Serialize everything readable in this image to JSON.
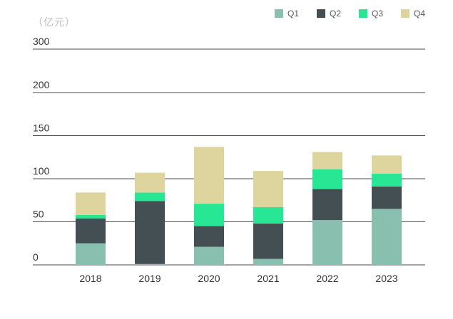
{
  "chart_data": {
    "type": "bar",
    "stacked": true,
    "unit_label": "（亿元）",
    "categories": [
      "2018",
      "2019",
      "2020",
      "2021",
      "2022",
      "2023"
    ],
    "ylim": [
      0,
      300
    ],
    "yticks": [
      "0",
      "50",
      "100",
      "150",
      "200",
      "300"
    ],
    "grid": true,
    "legend_position": "top-right",
    "series": [
      {
        "name": "Q1",
        "color": "#88bfaf",
        "values": [
          25,
          1,
          21,
          7,
          52,
          65
        ]
      },
      {
        "name": "Q2",
        "color": "#444f53",
        "values": [
          29,
          73,
          24,
          41,
          36,
          26
        ]
      },
      {
        "name": "Q3",
        "color": "#27e694",
        "values": [
          4,
          10,
          26,
          19,
          23,
          15
        ]
      },
      {
        "name": "Q4",
        "color": "#ddd59d",
        "values": [
          26,
          23,
          66,
          42,
          20,
          21
        ]
      }
    ]
  }
}
